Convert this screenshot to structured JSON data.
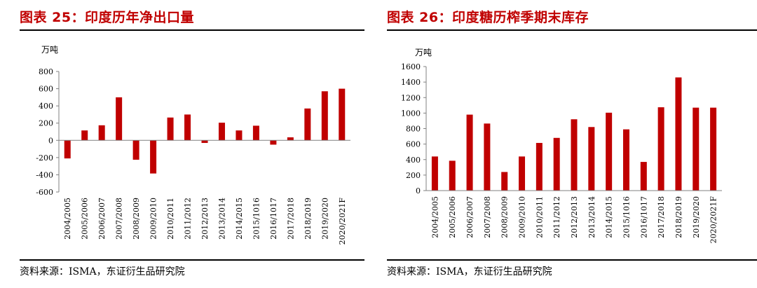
{
  "left": {
    "title": "图表 25：印度历年净出口量",
    "source": "资料来源：ISMA，东证衍生品研究院",
    "chart_data": {
      "type": "bar",
      "unit_label": "万吨",
      "categories": [
        "2004/2005",
        "2005/2006",
        "2006/2007",
        "2007/2008",
        "2008/2009",
        "2009/2010",
        "2010/2011",
        "2011/2012",
        "2012/2013",
        "2013/2014",
        "2014/2015",
        "2015/1016",
        "2016/1017",
        "2017/2018",
        "2018/2019",
        "2019/2020",
        "2020/2021F"
      ],
      "values": [
        -210,
        115,
        175,
        500,
        -225,
        -385,
        265,
        300,
        -30,
        205,
        115,
        170,
        -50,
        35,
        370,
        570,
        600
      ],
      "ylim": [
        -600,
        800
      ],
      "yticks": [
        "-600",
        "-400",
        "-200",
        "0",
        "200",
        "400",
        "600",
        "800"
      ],
      "color": "#c00000"
    }
  },
  "right": {
    "title": "图表 26：印度糖历榨季期末库存",
    "source": "资料来源：ISMA，东证衍生品研究院",
    "chart_data": {
      "type": "bar",
      "unit_label": "万吨",
      "categories": [
        "2004/2005",
        "2005/2006",
        "2006/2007",
        "2007/2008",
        "2008/2009",
        "2009/2010",
        "2010/2011",
        "2011/2012",
        "2012/2013",
        "2013/2014",
        "2014/2015",
        "2015/1016",
        "2016/1017",
        "2017/2018",
        "2018/2019",
        "2019/2020",
        "2020/2021F"
      ],
      "values": [
        440,
        385,
        980,
        865,
        240,
        440,
        615,
        680,
        920,
        820,
        1005,
        790,
        370,
        1075,
        1460,
        1070,
        1070
      ],
      "ylim": [
        0,
        1600
      ],
      "yticks": [
        "0",
        "200",
        "400",
        "600",
        "800",
        "1000",
        "1200",
        "1400",
        "1600"
      ],
      "color": "#c00000"
    }
  }
}
